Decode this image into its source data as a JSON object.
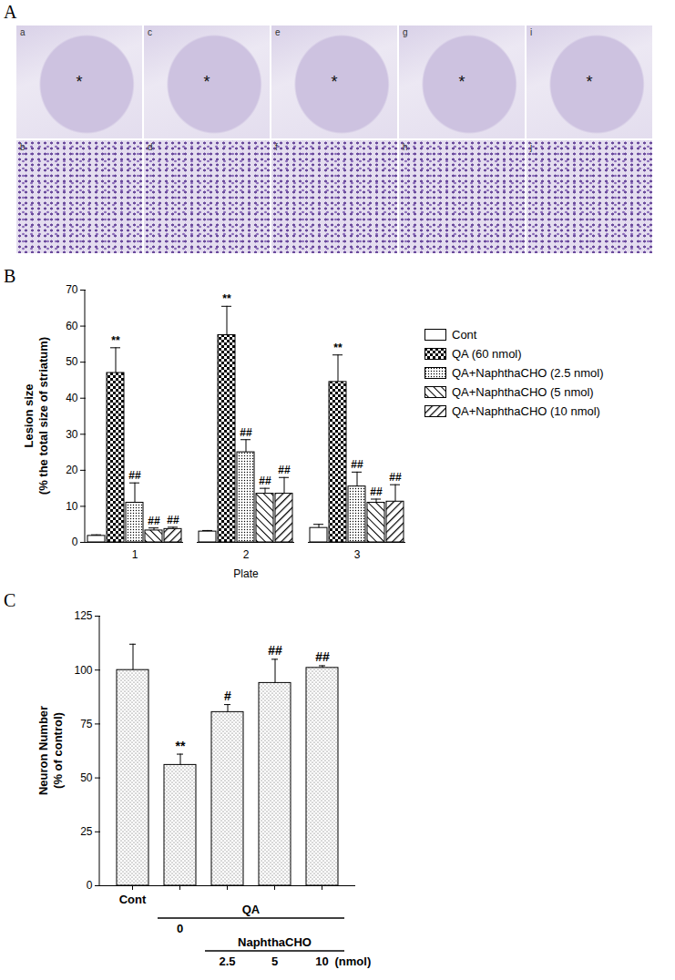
{
  "image_panel": {
    "panel_label": "A",
    "rows": [
      [
        {
          "label": "a",
          "mark": "*"
        },
        {
          "label": "c",
          "mark": "*"
        },
        {
          "label": "e",
          "mark": "*"
        },
        {
          "label": "g",
          "mark": "*"
        },
        {
          "label": "i",
          "mark": "*"
        }
      ],
      [
        {
          "label": "b"
        },
        {
          "label": "d"
        },
        {
          "label": "f"
        },
        {
          "label": "h"
        },
        {
          "label": "j"
        }
      ]
    ]
  },
  "chart_data": [
    {
      "panel_label": "B",
      "type": "bar",
      "ylabel": "Lesion size\n(% the total size of striatum)",
      "xlabel": "Plate",
      "categories": [
        "1",
        "2",
        "3"
      ],
      "series": [
        {
          "name": "Cont",
          "values": [
            1.8,
            3,
            4
          ],
          "errors": [
            0.3,
            0.3,
            1
          ],
          "significance": [
            null,
            null,
            null
          ]
        },
        {
          "name": "QA (60 nmol)",
          "values": [
            47,
            57.5,
            44.5
          ],
          "errors": [
            7,
            8,
            7.5
          ],
          "significance": [
            "**",
            "**",
            "**"
          ]
        },
        {
          "name": "QA+NaphthaCHO (2.5 nmol)",
          "values": [
            11,
            25,
            15.5
          ],
          "errors": [
            5.5,
            3.5,
            4
          ],
          "significance": [
            "##",
            "##",
            "##"
          ]
        },
        {
          "name": "QA+NaphthaCHO (5 nmol)",
          "values": [
            3.3,
            13.5,
            11
          ],
          "errors": [
            0.7,
            1.5,
            1
          ],
          "significance": [
            "##",
            "##",
            "##"
          ]
        },
        {
          "name": "QA+NaphthaCHO (10 nmol)",
          "values": [
            3.7,
            13.5,
            11.3
          ],
          "errors": [
            0.5,
            4.5,
            4.7
          ],
          "significance": [
            "##",
            "##",
            "##"
          ]
        }
      ],
      "ylim": [
        0,
        70
      ],
      "yticks": [
        0,
        10,
        20,
        30,
        40,
        50,
        60,
        70
      ],
      "legend": "right"
    },
    {
      "panel_label": "C",
      "type": "bar",
      "ylabel": "Neuron Number\n(% of control)",
      "categories": [
        "Cont",
        "0",
        "2.5",
        "5",
        "10"
      ],
      "values": [
        100,
        56,
        80.5,
        94,
        101
      ],
      "errors": [
        12,
        5,
        3.5,
        11,
        1
      ],
      "significance": [
        null,
        "**",
        "#",
        "##",
        "##"
      ],
      "groups": [
        {
          "label": "QA",
          "from": "0",
          "to": "10"
        },
        {
          "label": "NaphthaCHO",
          "from": "2.5",
          "to": "10"
        }
      ],
      "unit": "(nmol)",
      "ylim": [
        0,
        125
      ],
      "yticks": [
        0,
        25,
        50,
        75,
        100,
        125
      ]
    }
  ]
}
